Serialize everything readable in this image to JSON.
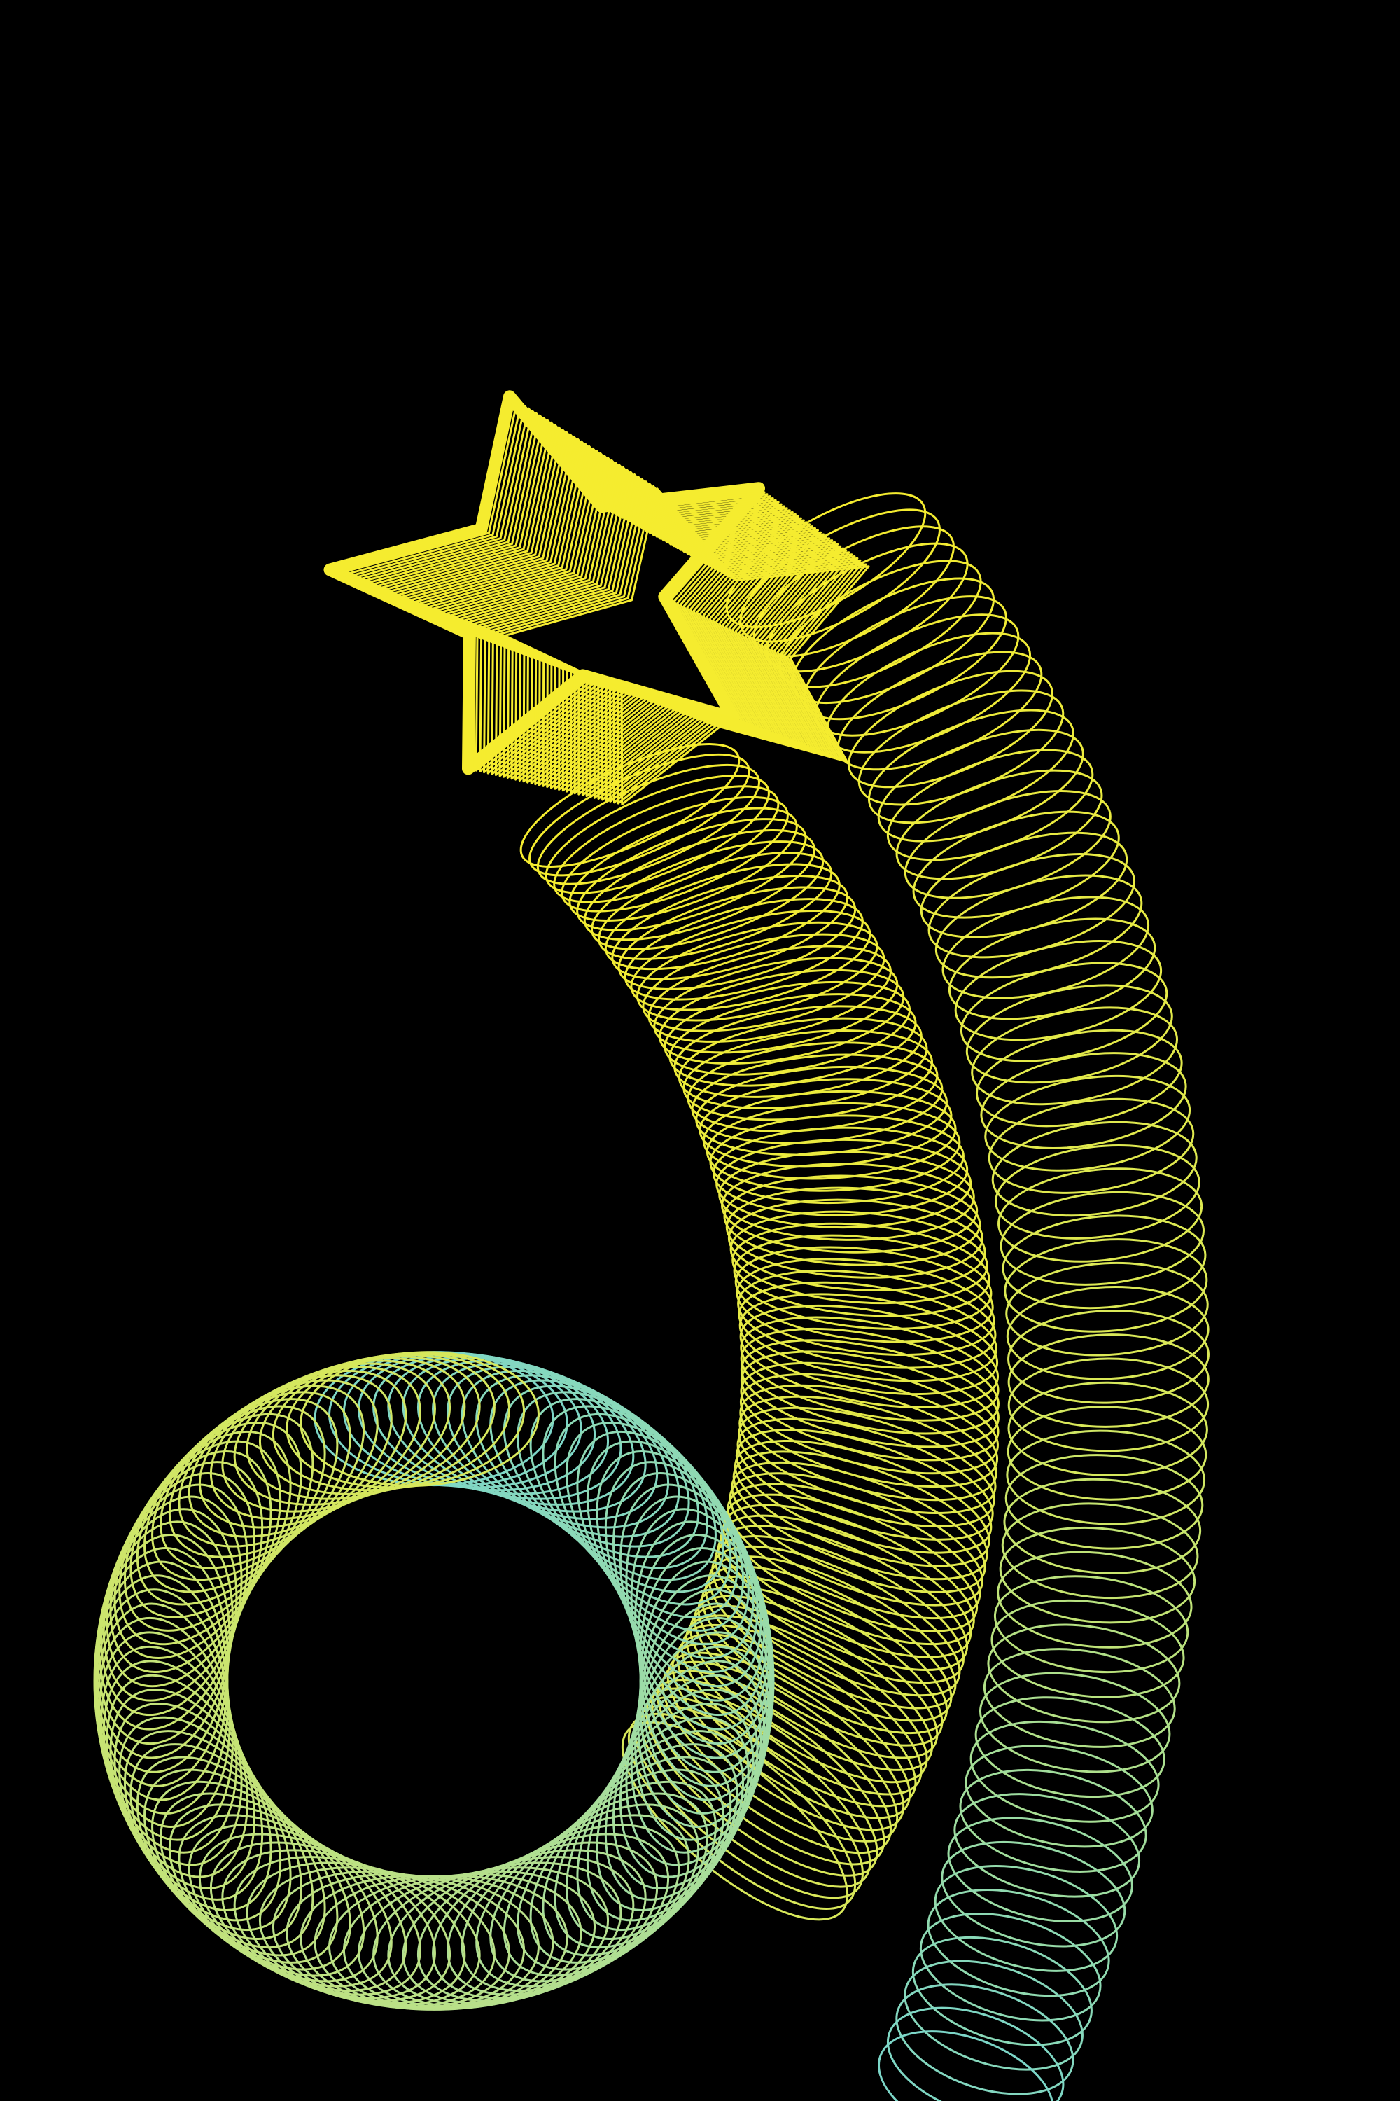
{
  "artwork": {
    "subject": "shooting-star-wireframe-ribbon",
    "background_color": "#000000",
    "colors": {
      "star_yellow": "#F5EC2F",
      "mid_yellow_green": "#D8E85A",
      "pale_green": "#B8E08A",
      "aqua": "#7CD6C8"
    },
    "star_points": 5,
    "ribbon_layers": 2
  }
}
